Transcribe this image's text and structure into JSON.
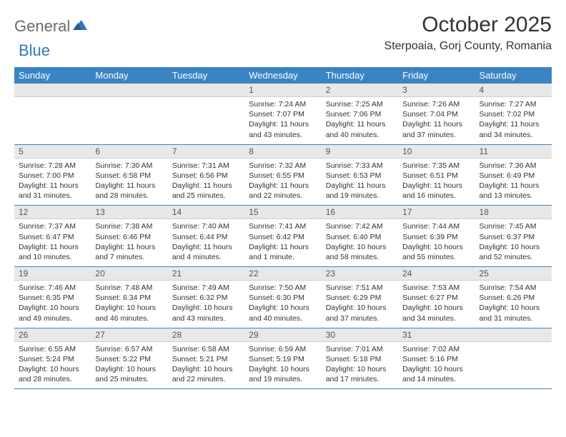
{
  "brand": {
    "part1": "General",
    "part2": "Blue"
  },
  "title": "October 2025",
  "location": "Sterpoaia, Gorj County, Romania",
  "theme": {
    "header_bg": "#3b84c4",
    "header_fg": "#ffffff",
    "daynum_bg": "#e8e8e8",
    "rule": "#3b84c4",
    "logo_gray": "#6b6b6b",
    "logo_blue": "#2f78bd",
    "text": "#333333"
  },
  "day_names": [
    "Sunday",
    "Monday",
    "Tuesday",
    "Wednesday",
    "Thursday",
    "Friday",
    "Saturday"
  ],
  "weeks": [
    [
      {
        "n": "",
        "sr": "",
        "ss": "",
        "dl": ""
      },
      {
        "n": "",
        "sr": "",
        "ss": "",
        "dl": ""
      },
      {
        "n": "",
        "sr": "",
        "ss": "",
        "dl": ""
      },
      {
        "n": "1",
        "sr": "Sunrise: 7:24 AM",
        "ss": "Sunset: 7:07 PM",
        "dl": "Daylight: 11 hours and 43 minutes."
      },
      {
        "n": "2",
        "sr": "Sunrise: 7:25 AM",
        "ss": "Sunset: 7:06 PM",
        "dl": "Daylight: 11 hours and 40 minutes."
      },
      {
        "n": "3",
        "sr": "Sunrise: 7:26 AM",
        "ss": "Sunset: 7:04 PM",
        "dl": "Daylight: 11 hours and 37 minutes."
      },
      {
        "n": "4",
        "sr": "Sunrise: 7:27 AM",
        "ss": "Sunset: 7:02 PM",
        "dl": "Daylight: 11 hours and 34 minutes."
      }
    ],
    [
      {
        "n": "5",
        "sr": "Sunrise: 7:28 AM",
        "ss": "Sunset: 7:00 PM",
        "dl": "Daylight: 11 hours and 31 minutes."
      },
      {
        "n": "6",
        "sr": "Sunrise: 7:30 AM",
        "ss": "Sunset: 6:58 PM",
        "dl": "Daylight: 11 hours and 28 minutes."
      },
      {
        "n": "7",
        "sr": "Sunrise: 7:31 AM",
        "ss": "Sunset: 6:56 PM",
        "dl": "Daylight: 11 hours and 25 minutes."
      },
      {
        "n": "8",
        "sr": "Sunrise: 7:32 AM",
        "ss": "Sunset: 6:55 PM",
        "dl": "Daylight: 11 hours and 22 minutes."
      },
      {
        "n": "9",
        "sr": "Sunrise: 7:33 AM",
        "ss": "Sunset: 6:53 PM",
        "dl": "Daylight: 11 hours and 19 minutes."
      },
      {
        "n": "10",
        "sr": "Sunrise: 7:35 AM",
        "ss": "Sunset: 6:51 PM",
        "dl": "Daylight: 11 hours and 16 minutes."
      },
      {
        "n": "11",
        "sr": "Sunrise: 7:36 AM",
        "ss": "Sunset: 6:49 PM",
        "dl": "Daylight: 11 hours and 13 minutes."
      }
    ],
    [
      {
        "n": "12",
        "sr": "Sunrise: 7:37 AM",
        "ss": "Sunset: 6:47 PM",
        "dl": "Daylight: 11 hours and 10 minutes."
      },
      {
        "n": "13",
        "sr": "Sunrise: 7:38 AM",
        "ss": "Sunset: 6:46 PM",
        "dl": "Daylight: 11 hours and 7 minutes."
      },
      {
        "n": "14",
        "sr": "Sunrise: 7:40 AM",
        "ss": "Sunset: 6:44 PM",
        "dl": "Daylight: 11 hours and 4 minutes."
      },
      {
        "n": "15",
        "sr": "Sunrise: 7:41 AM",
        "ss": "Sunset: 6:42 PM",
        "dl": "Daylight: 11 hours and 1 minute."
      },
      {
        "n": "16",
        "sr": "Sunrise: 7:42 AM",
        "ss": "Sunset: 6:40 PM",
        "dl": "Daylight: 10 hours and 58 minutes."
      },
      {
        "n": "17",
        "sr": "Sunrise: 7:44 AM",
        "ss": "Sunset: 6:39 PM",
        "dl": "Daylight: 10 hours and 55 minutes."
      },
      {
        "n": "18",
        "sr": "Sunrise: 7:45 AM",
        "ss": "Sunset: 6:37 PM",
        "dl": "Daylight: 10 hours and 52 minutes."
      }
    ],
    [
      {
        "n": "19",
        "sr": "Sunrise: 7:46 AM",
        "ss": "Sunset: 6:35 PM",
        "dl": "Daylight: 10 hours and 49 minutes."
      },
      {
        "n": "20",
        "sr": "Sunrise: 7:48 AM",
        "ss": "Sunset: 6:34 PM",
        "dl": "Daylight: 10 hours and 46 minutes."
      },
      {
        "n": "21",
        "sr": "Sunrise: 7:49 AM",
        "ss": "Sunset: 6:32 PM",
        "dl": "Daylight: 10 hours and 43 minutes."
      },
      {
        "n": "22",
        "sr": "Sunrise: 7:50 AM",
        "ss": "Sunset: 6:30 PM",
        "dl": "Daylight: 10 hours and 40 minutes."
      },
      {
        "n": "23",
        "sr": "Sunrise: 7:51 AM",
        "ss": "Sunset: 6:29 PM",
        "dl": "Daylight: 10 hours and 37 minutes."
      },
      {
        "n": "24",
        "sr": "Sunrise: 7:53 AM",
        "ss": "Sunset: 6:27 PM",
        "dl": "Daylight: 10 hours and 34 minutes."
      },
      {
        "n": "25",
        "sr": "Sunrise: 7:54 AM",
        "ss": "Sunset: 6:26 PM",
        "dl": "Daylight: 10 hours and 31 minutes."
      }
    ],
    [
      {
        "n": "26",
        "sr": "Sunrise: 6:55 AM",
        "ss": "Sunset: 5:24 PM",
        "dl": "Daylight: 10 hours and 28 minutes."
      },
      {
        "n": "27",
        "sr": "Sunrise: 6:57 AM",
        "ss": "Sunset: 5:22 PM",
        "dl": "Daylight: 10 hours and 25 minutes."
      },
      {
        "n": "28",
        "sr": "Sunrise: 6:58 AM",
        "ss": "Sunset: 5:21 PM",
        "dl": "Daylight: 10 hours and 22 minutes."
      },
      {
        "n": "29",
        "sr": "Sunrise: 6:59 AM",
        "ss": "Sunset: 5:19 PM",
        "dl": "Daylight: 10 hours and 19 minutes."
      },
      {
        "n": "30",
        "sr": "Sunrise: 7:01 AM",
        "ss": "Sunset: 5:18 PM",
        "dl": "Daylight: 10 hours and 17 minutes."
      },
      {
        "n": "31",
        "sr": "Sunrise: 7:02 AM",
        "ss": "Sunset: 5:16 PM",
        "dl": "Daylight: 10 hours and 14 minutes."
      },
      {
        "n": "",
        "sr": "",
        "ss": "",
        "dl": ""
      }
    ]
  ]
}
